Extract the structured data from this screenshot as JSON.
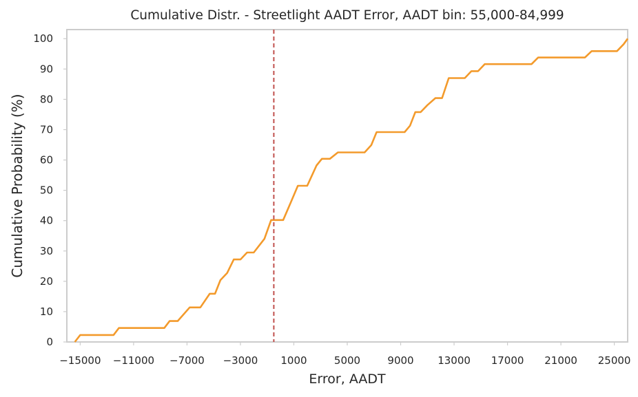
{
  "chart_data": {
    "type": "line",
    "title": "Cumulative Distr. - Streetlight AADT Error, AADT bin: 55,000-84,999",
    "xlabel": "Error, AADT",
    "ylabel": "Cumulative Probability (%)",
    "xlim": [
      -16000,
      26000
    ],
    "ylim": [
      0,
      103
    ],
    "x_ticks": [
      -15000,
      -11000,
      -7000,
      -3000,
      1000,
      5000,
      9000,
      13000,
      17000,
      21000,
      25000
    ],
    "x_tick_labels": [
      "−15000",
      "−11000",
      "−7000",
      "−3000",
      "1000",
      "5000",
      "9000",
      "13000",
      "17000",
      "21000",
      "25000"
    ],
    "y_ticks": [
      0,
      10,
      20,
      30,
      40,
      50,
      60,
      70,
      80,
      90,
      100
    ],
    "y_tick_labels": [
      "0",
      "10",
      "20",
      "30",
      "40",
      "50",
      "60",
      "70",
      "80",
      "90",
      "100"
    ],
    "grid": false,
    "series": [
      {
        "color": "#f39a2b",
        "x": [
          -15400,
          -15000,
          -13000,
          -12500,
          -12100,
          -8700,
          -8300,
          -7700,
          -6800,
          -6000,
          -5300,
          -4900,
          -4500,
          -4000,
          -3500,
          -3000,
          -2500,
          -2000,
          -1200,
          -700,
          -200,
          200,
          800,
          1300,
          1600,
          2000,
          2700,
          3100,
          3700,
          4300,
          6300,
          6800,
          7200,
          9300,
          9700,
          10100,
          10500,
          11000,
          11600,
          12100,
          12600,
          13800,
          14300,
          14800,
          15300,
          18800,
          19300,
          22800,
          23300,
          25200,
          25700,
          26000
        ],
        "y": [
          0,
          2.3,
          2.3,
          2.3,
          4.6,
          4.6,
          6.9,
          6.9,
          11.4,
          11.4,
          15.9,
          15.9,
          20.4,
          22.7,
          27.2,
          27.2,
          29.5,
          29.5,
          34,
          40.2,
          40.2,
          40.2,
          46.3,
          51.5,
          51.5,
          51.5,
          58.2,
          60.4,
          60.4,
          62.5,
          62.5,
          64.9,
          69.2,
          69.2,
          71.3,
          75.8,
          75.8,
          78.1,
          80.4,
          80.4,
          87,
          87,
          89.3,
          89.3,
          91.6,
          91.6,
          93.8,
          93.8,
          95.9,
          95.9,
          98.2,
          100
        ]
      }
    ],
    "vline": {
      "x": -500,
      "color": "#c0504d",
      "style": "dashed"
    }
  }
}
